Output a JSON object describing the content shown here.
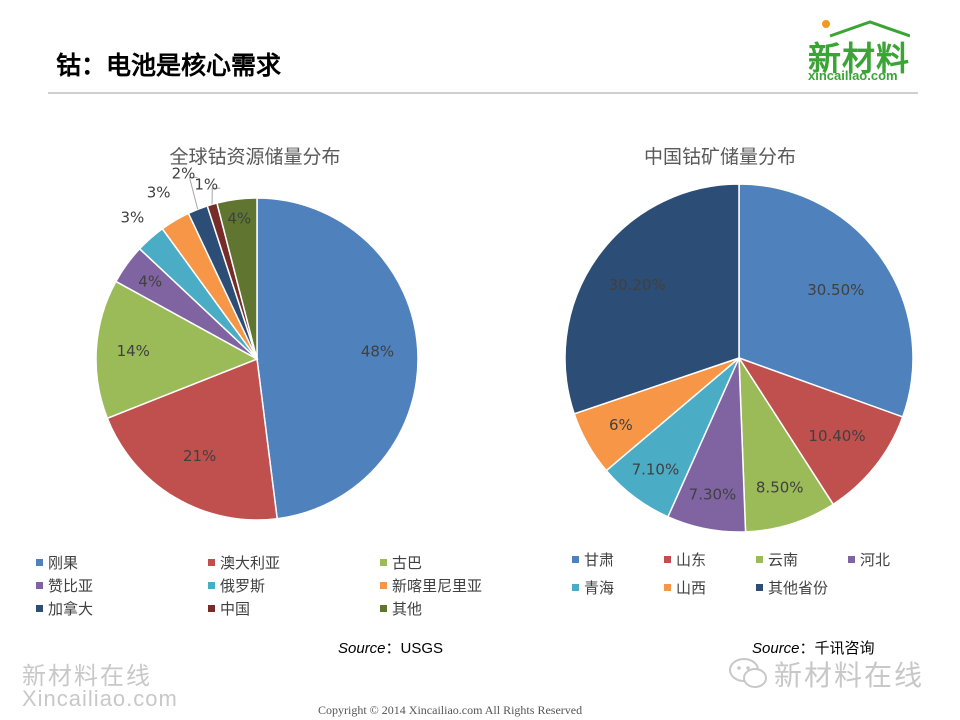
{
  "page": {
    "title": "钴：电池是核心需求",
    "logo_main": "新材料",
    "logo_sub": "xincailiao.com",
    "copyright": "Copyright © 2014   Xincailiao.com    All Rights Reserved",
    "watermark_left_1": "新材料在线",
    "watermark_left_2": "Xincailiao.com",
    "watermark_right": "新材料在线",
    "brand_color": "#3aa535"
  },
  "chart_data": [
    {
      "type": "pie",
      "title": "全球钴资源储量分布",
      "categories": [
        "刚果",
        "澳大利亚",
        "古巴",
        "赞比亚",
        "俄罗斯",
        "新喀里尼里亚",
        "加拿大",
        "中国",
        "其他"
      ],
      "values": [
        48,
        21,
        14,
        4,
        3,
        3,
        2,
        1,
        4
      ],
      "labels": [
        "48%",
        "21%",
        "14%",
        "4%",
        "3%",
        "3%",
        "2%",
        "1%",
        "4%"
      ],
      "colors": [
        "#4f81bd",
        "#c0504d",
        "#9bbb59",
        "#8064a2",
        "#4bacc6",
        "#f79646",
        "#2c4d75",
        "#772c2a",
        "#5f7530"
      ],
      "legend_position": "bottom",
      "source_label": "Source",
      "source_value": "：USGS"
    },
    {
      "type": "pie",
      "title": "中国钴矿储量分布",
      "categories": [
        "甘肃",
        "山东",
        "云南",
        "河北",
        "青海",
        "山西",
        "其他省份"
      ],
      "values": [
        30.5,
        10.4,
        8.5,
        7.3,
        7.1,
        6,
        30.2
      ],
      "labels": [
        "30.50%",
        "10.40%",
        "8.50%",
        "7.30%",
        "7.10%",
        "6%",
        "30.20%"
      ],
      "colors": [
        "#4f81bd",
        "#c0504d",
        "#9bbb59",
        "#8064a2",
        "#4bacc6",
        "#f79646",
        "#2c4d75"
      ],
      "legend_position": "bottom",
      "source_label": "Source",
      "source_value": "：千讯咨询"
    }
  ]
}
